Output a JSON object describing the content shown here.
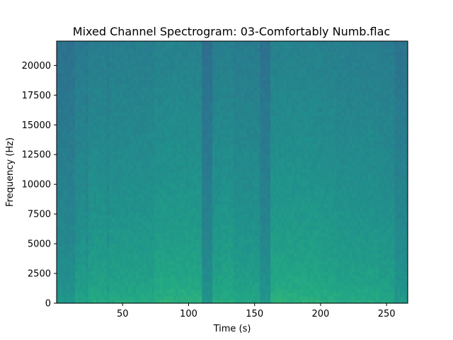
{
  "chart_data": {
    "type": "heatmap",
    "title": "Mixed Channel Spectrogram: 03-Comfortably Numb.flac",
    "xlabel": "Time (s)",
    "ylabel": "Frequency (Hz)",
    "xlim": [
      0,
      266
    ],
    "ylim": [
      0,
      22050
    ],
    "xticks": [
      50,
      100,
      150,
      200,
      250
    ],
    "yticks": [
      0,
      2500,
      5000,
      7500,
      10000,
      12500,
      15000,
      17500,
      20000
    ],
    "colormap": "viridis",
    "colors": {
      "quiet": "#23898e",
      "moderate": "#27a884",
      "loud": "#5ec962",
      "loudest": "#bddf26"
    },
    "segments": [
      {
        "t0": 0,
        "t1": 15,
        "energy": 0.25
      },
      {
        "t0": 15,
        "t1": 22,
        "energy": 0.45
      },
      {
        "t0": 22,
        "t1": 25,
        "energy": 0.35
      },
      {
        "t0": 25,
        "t1": 38,
        "energy": 0.55
      },
      {
        "t0": 38,
        "t1": 41,
        "energy": 0.42
      },
      {
        "t0": 41,
        "t1": 75,
        "energy": 0.55
      },
      {
        "t0": 75,
        "t1": 110,
        "energy": 0.65
      },
      {
        "t0": 110,
        "t1": 119,
        "energy": 0.2
      },
      {
        "t0": 119,
        "t1": 125,
        "energy": 0.55
      },
      {
        "t0": 125,
        "t1": 135,
        "energy": 0.6
      },
      {
        "t0": 135,
        "t1": 155,
        "energy": 0.5
      },
      {
        "t0": 155,
        "t1": 163,
        "energy": 0.25
      },
      {
        "t0": 163,
        "t1": 200,
        "energy": 0.65
      },
      {
        "t0": 200,
        "t1": 212,
        "energy": 0.6
      },
      {
        "t0": 212,
        "t1": 245,
        "energy": 0.55
      },
      {
        "t0": 245,
        "t1": 257,
        "energy": 0.5
      },
      {
        "t0": 257,
        "t1": 266,
        "energy": 0.3
      }
    ]
  }
}
